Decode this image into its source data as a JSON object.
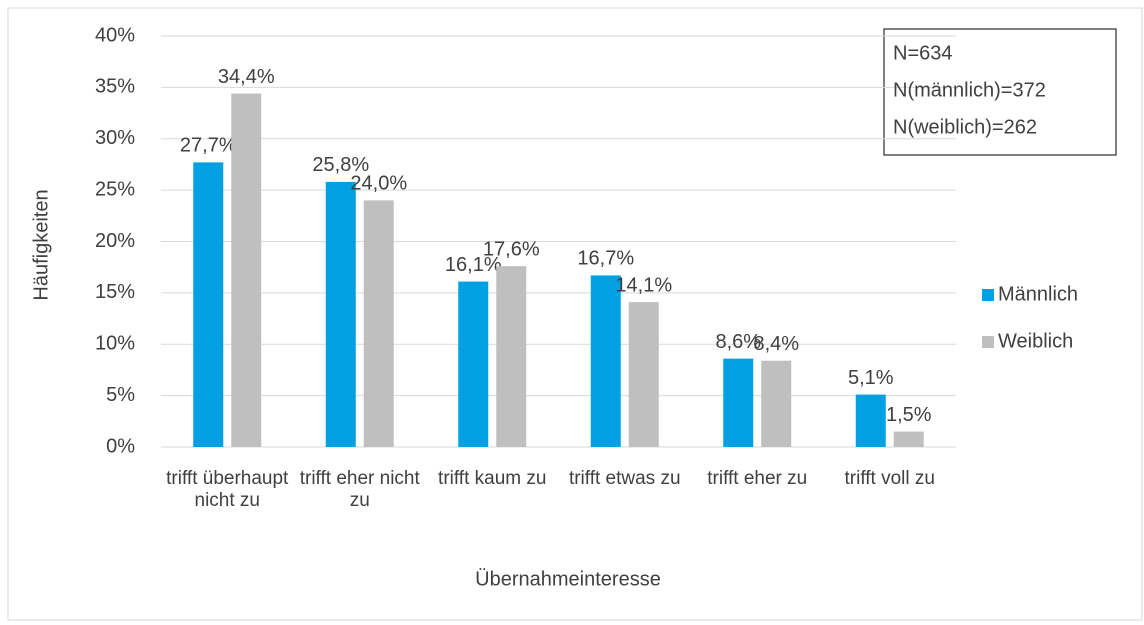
{
  "chart_data": {
    "type": "bar",
    "y_label": "Häufigkeiten",
    "x_label": "Übernahmeinteresse",
    "categories": [
      "trifft überhaupt nicht zu",
      "trifft eher nicht zu",
      "trifft kaum zu",
      "trifft etwas zu",
      "trifft eher zu",
      "trifft voll zu"
    ],
    "series": [
      {
        "name": "Männlich",
        "color": "#00a0e2",
        "values": [
          27.7,
          25.8,
          16.1,
          16.7,
          8.6,
          5.1
        ],
        "value_labels": [
          "27,7%",
          "25,8%",
          "16,1%",
          "16,7%",
          "8,6%",
          "5,1%"
        ]
      },
      {
        "name": "Weiblich",
        "color": "#bfbfbf",
        "values": [
          34.4,
          24.0,
          17.6,
          14.1,
          8.4,
          1.5
        ],
        "value_labels": [
          "34,4%",
          "24,0%",
          "17,6%",
          "14,1%",
          "8,4%",
          "1,5%"
        ]
      }
    ],
    "ylim": [
      0,
      40
    ],
    "yticks": [
      {
        "value": 0,
        "label": "0%"
      },
      {
        "value": 5,
        "label": "5%"
      },
      {
        "value": 10,
        "label": "10%"
      },
      {
        "value": 15,
        "label": "15%"
      },
      {
        "value": 20,
        "label": "20%"
      },
      {
        "value": 25,
        "label": "25%"
      },
      {
        "value": 30,
        "label": "30%"
      },
      {
        "value": 35,
        "label": "35%"
      },
      {
        "value": 40,
        "label": "40%"
      }
    ],
    "grid": true,
    "legend": "right",
    "annotation": [
      "N=634",
      "N(männlich)=372",
      "N(weiblich)=262"
    ]
  }
}
